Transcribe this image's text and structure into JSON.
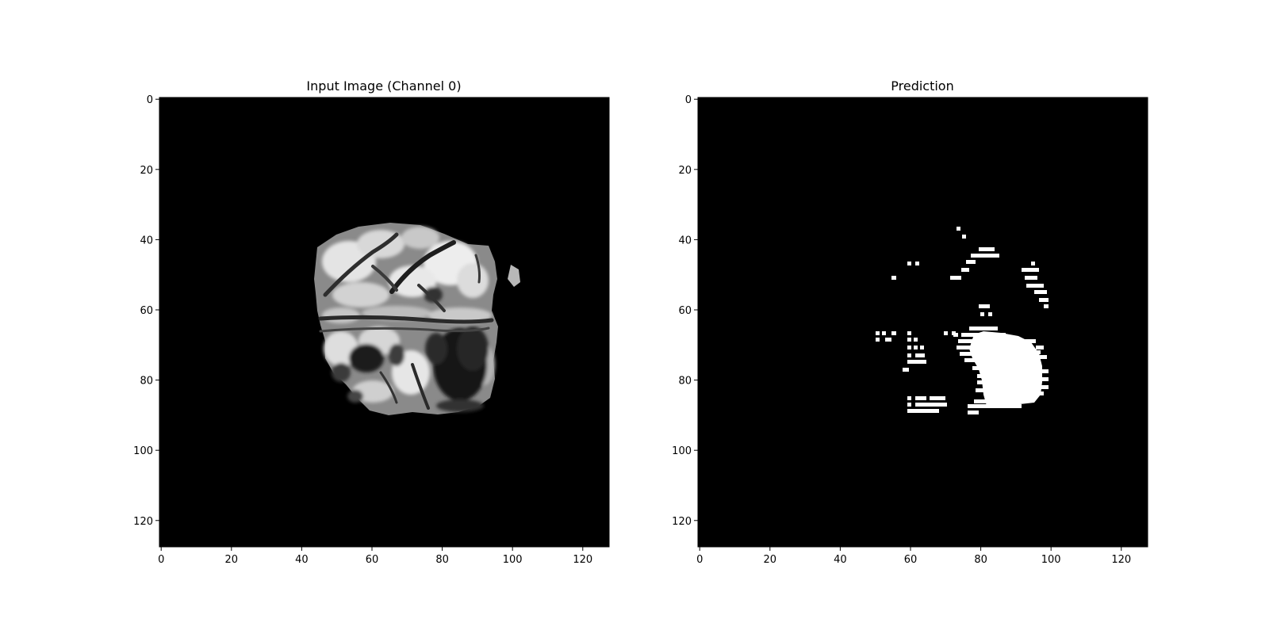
{
  "figure": {
    "panels": [
      {
        "title": "Input Image (Channel 0)",
        "content": "grayscale brain MRI slice"
      },
      {
        "title": "Prediction",
        "content": "binary segmentation mask"
      }
    ]
  },
  "chart_data": [
    {
      "type": "heatmap",
      "title": "Input Image (Channel 0)",
      "xlim": [
        0,
        128
      ],
      "ylim": [
        128,
        0
      ],
      "xticks": [
        "0",
        "20",
        "40",
        "60",
        "80",
        "100",
        "120"
      ],
      "yticks": [
        "0",
        "20",
        "40",
        "60",
        "80",
        "100",
        "120"
      ],
      "grid": false,
      "colormap": "gray",
      "background": "#000000"
    },
    {
      "type": "heatmap",
      "title": "Prediction",
      "xlim": [
        0,
        128
      ],
      "ylim": [
        128,
        0
      ],
      "xticks": [
        "0",
        "20",
        "40",
        "60",
        "80",
        "100",
        "120"
      ],
      "yticks": [
        "0",
        "20",
        "40",
        "60",
        "80",
        "100",
        "120"
      ],
      "grid": false,
      "colormap": "gray",
      "background": "#000000",
      "foreground": "#ffffff"
    }
  ]
}
